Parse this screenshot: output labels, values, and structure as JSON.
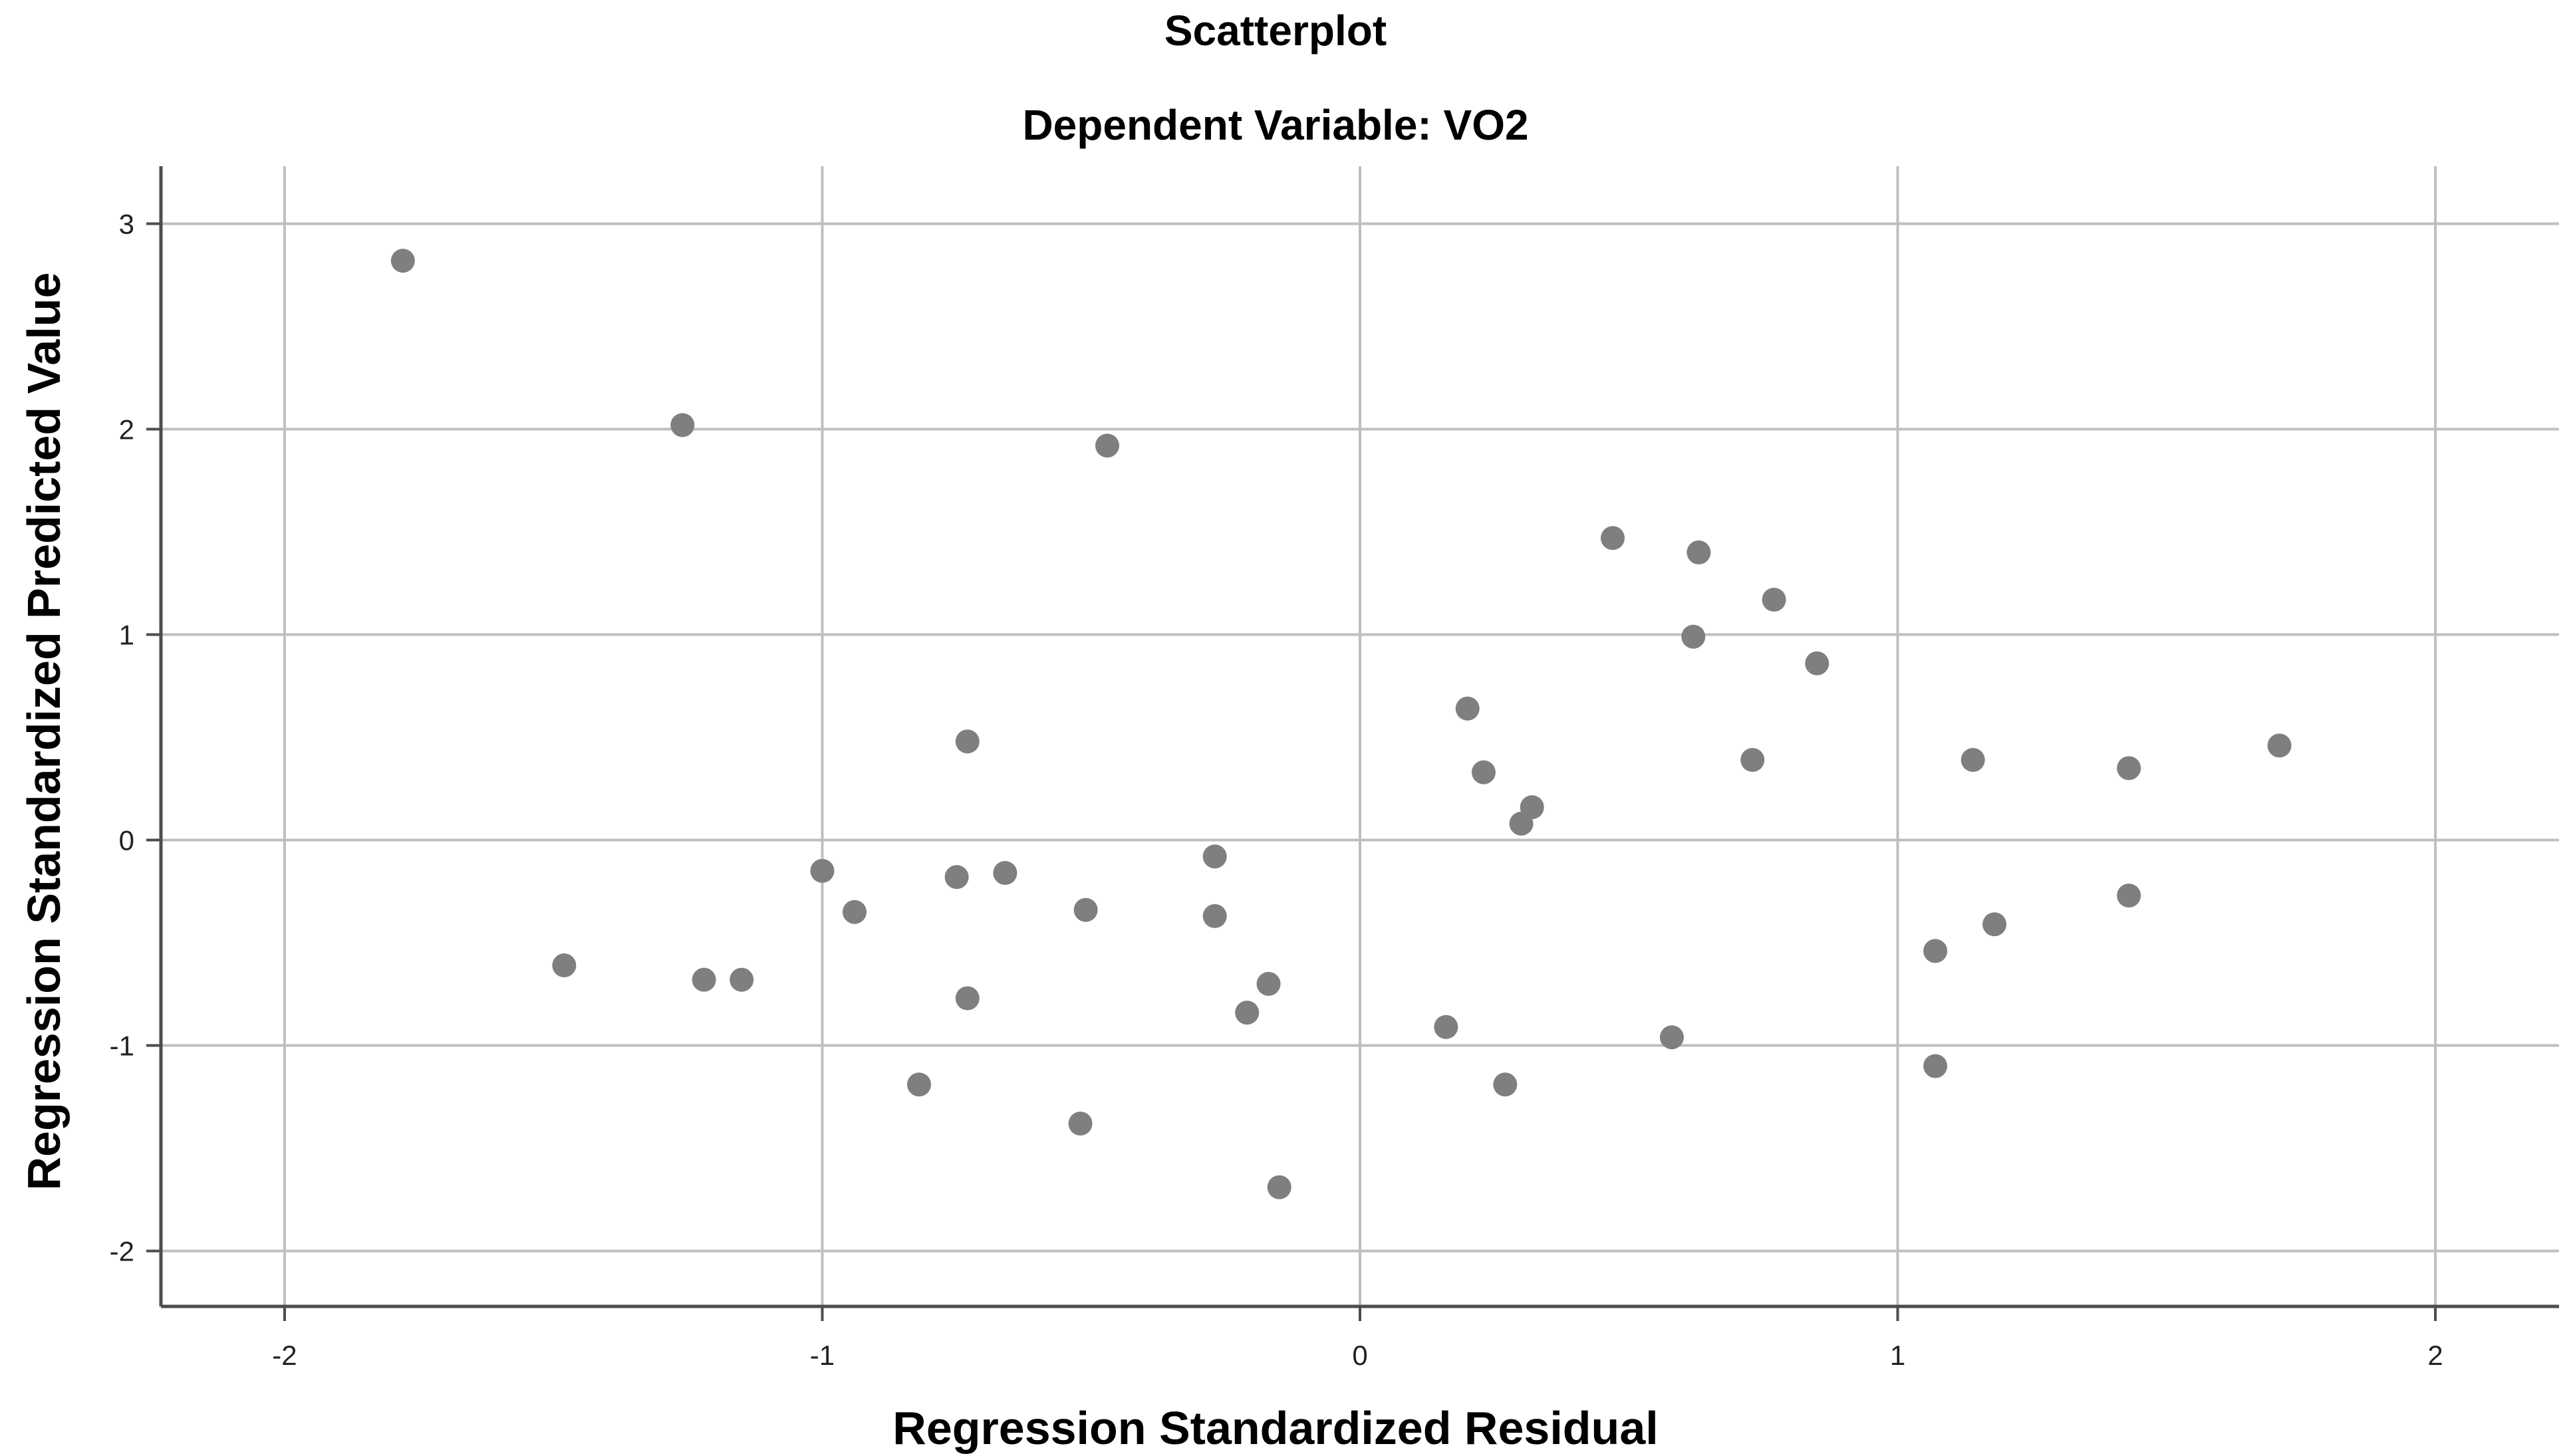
{
  "chart_data": {
    "type": "scatter",
    "title": "Scatterplot",
    "subtitle": "Dependent Variable: VO2",
    "xlabel": "Regression Standardized Residual",
    "ylabel": "Regression Standardized Predicted Value",
    "xlim": [
      -2.23,
      2.23
    ],
    "ylim": [
      -2.27,
      3.28
    ],
    "x_ticks": [
      -2,
      -1,
      0,
      1,
      2
    ],
    "y_ticks": [
      -2,
      -1,
      0,
      1,
      2,
      3
    ],
    "x_tick_labels": [
      "-2",
      "-1",
      "0",
      "1",
      "2"
    ],
    "y_tick_labels": [
      "-2",
      "-1",
      "0",
      "1",
      "2",
      "3"
    ],
    "grid": true,
    "point_color": "#7f7f7f",
    "grid_color": "#bfbfbf",
    "axis_color": "#4d4d4d",
    "series": [
      {
        "points": [
          {
            "x": -1.78,
            "y": 2.82
          },
          {
            "x": -1.26,
            "y": 2.02
          },
          {
            "x": -0.47,
            "y": 1.92
          },
          {
            "x": -1.48,
            "y": -0.61
          },
          {
            "x": -1.22,
            "y": -0.68
          },
          {
            "x": -1.15,
            "y": -0.68
          },
          {
            "x": -1.0,
            "y": -0.15
          },
          {
            "x": -0.94,
            "y": -0.35
          },
          {
            "x": -0.82,
            "y": -1.19
          },
          {
            "x": -0.75,
            "y": -0.18
          },
          {
            "x": -0.73,
            "y": 0.48
          },
          {
            "x": -0.73,
            "y": -0.77
          },
          {
            "x": -0.66,
            "y": -0.16
          },
          {
            "x": -0.51,
            "y": -0.34
          },
          {
            "x": -0.52,
            "y": -1.38
          },
          {
            "x": -0.27,
            "y": -0.08
          },
          {
            "x": -0.27,
            "y": -0.37
          },
          {
            "x": -0.21,
            "y": -0.84
          },
          {
            "x": -0.17,
            "y": -0.7
          },
          {
            "x": -0.15,
            "y": -1.69
          },
          {
            "x": 0.16,
            "y": -0.91
          },
          {
            "x": 0.2,
            "y": 0.64
          },
          {
            "x": 0.23,
            "y": 0.33
          },
          {
            "x": 0.27,
            "y": -1.19
          },
          {
            "x": 0.3,
            "y": 0.08
          },
          {
            "x": 0.32,
            "y": 0.16
          },
          {
            "x": 0.47,
            "y": 1.47
          },
          {
            "x": 0.58,
            "y": -0.96
          },
          {
            "x": 0.62,
            "y": 0.99
          },
          {
            "x": 0.63,
            "y": 1.4
          },
          {
            "x": 0.73,
            "y": 0.39
          },
          {
            "x": 0.77,
            "y": 1.17
          },
          {
            "x": 0.85,
            "y": 0.86
          },
          {
            "x": 1.07,
            "y": -0.54
          },
          {
            "x": 1.07,
            "y": -1.1
          },
          {
            "x": 1.14,
            "y": 0.39
          },
          {
            "x": 1.18,
            "y": -0.41
          },
          {
            "x": 1.43,
            "y": 0.35
          },
          {
            "x": 1.43,
            "y": -0.27
          },
          {
            "x": 1.71,
            "y": 0.46
          }
        ]
      }
    ]
  }
}
